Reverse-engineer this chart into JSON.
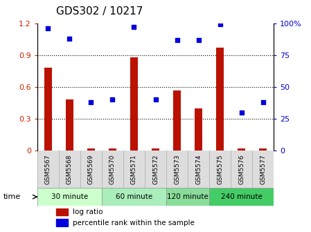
{
  "title": "GDS302 / 10217",
  "samples": [
    "GSM5567",
    "GSM5568",
    "GSM5569",
    "GSM5570",
    "GSM5571",
    "GSM5572",
    "GSM5573",
    "GSM5574",
    "GSM5575",
    "GSM5576",
    "GSM5577"
  ],
  "log_ratio": [
    0.78,
    0.48,
    0.02,
    0.02,
    0.88,
    0.02,
    0.57,
    0.4,
    0.97,
    0.02,
    0.02
  ],
  "percentile": [
    96,
    88,
    38,
    40,
    97,
    40,
    87,
    87,
    99,
    30,
    38
  ],
  "ylim_left": [
    0,
    1.2
  ],
  "ylim_right": [
    0,
    100
  ],
  "yticks_left": [
    0,
    0.3,
    0.6,
    0.9,
    1.2
  ],
  "ytick_labels_left": [
    "0",
    "0.3",
    "0.6",
    "0.9",
    "1.2"
  ],
  "yticks_right": [
    0,
    25,
    50,
    75,
    100
  ],
  "ytick_labels_right": [
    "0",
    "25",
    "50",
    "75",
    "100%"
  ],
  "bar_color": "#bb1100",
  "dot_color": "#0000dd",
  "groups": [
    {
      "label": "30 minute",
      "spans": [
        0,
        2
      ],
      "color": "#ccffcc"
    },
    {
      "label": "60 minute",
      "spans": [
        3,
        5
      ],
      "color": "#aaeebb"
    },
    {
      "label": "120 minute",
      "spans": [
        6,
        7
      ],
      "color": "#88dd99"
    },
    {
      "label": "240 minute",
      "spans": [
        8,
        10
      ],
      "color": "#44cc66"
    }
  ],
  "time_label": "time",
  "legend_bar_label": "log ratio",
  "legend_dot_label": "percentile rank within the sample",
  "grid_color": "#000000",
  "bg_color": "#ffffff",
  "plot_bg": "#ffffff",
  "tick_bg": "#dddddd",
  "tick_label_color_left": "#cc2200",
  "tick_label_color_right": "#0000cc",
  "title_fontsize": 11,
  "bar_width": 0.35
}
